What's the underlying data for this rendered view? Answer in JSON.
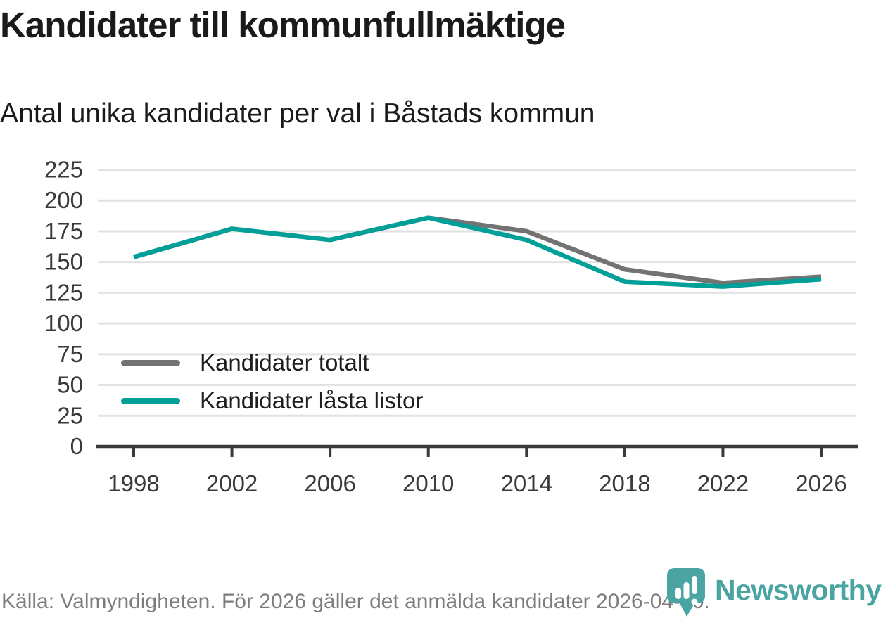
{
  "header": {
    "title": "Kandidater till kommunfullmäktige",
    "subtitle": "Antal unika kandidater per val i Båstads kommun"
  },
  "chart_data": {
    "type": "line",
    "x": [
      1998,
      2002,
      2006,
      2010,
      2014,
      2018,
      2022,
      2026
    ],
    "xticklabels": [
      "1998",
      "2002",
      "2006",
      "2010",
      "2014",
      "2018",
      "2022",
      "2026"
    ],
    "series": [
      {
        "name": "Kandidater totalt",
        "color": "#737373",
        "values": [
          154,
          177,
          168,
          186,
          175,
          144,
          133,
          138
        ]
      },
      {
        "name": "Kandidater låsta listor",
        "color": "#00a099",
        "values": [
          154,
          177,
          168,
          186,
          168,
          134,
          130,
          136
        ]
      }
    ],
    "ylim": [
      0,
      225
    ],
    "yticks": [
      0,
      25,
      50,
      75,
      100,
      125,
      150,
      175,
      200,
      225
    ],
    "grid": "horizontal",
    "grid_color": "#e2e2e2",
    "axis_color": "#3a3a3a",
    "tick_label_color": "#3a3a3a",
    "legend_position": "inside-lower-left"
  },
  "footer": {
    "source": "Källa: Valmyndigheten. För 2026 gäller det anmälda kandidater 2026-04-10."
  },
  "branding": {
    "name": "Newsworthy",
    "color": "#4aa5a2",
    "icon": "newsworthy-pin-barchart-icon"
  }
}
